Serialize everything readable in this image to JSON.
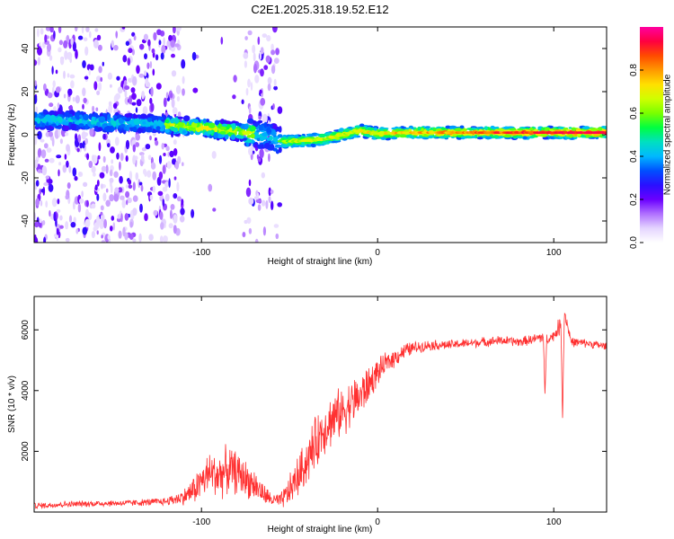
{
  "figure_title": "C2E1.2025.318.19.52.E12",
  "chart_data": [
    {
      "type": "heatmap",
      "title": "C2E1.2025.318.19.52.E12",
      "xlabel": "Height of straight line (km)",
      "ylabel": "Frequency (Hz)",
      "xlim": [
        -195,
        130
      ],
      "ylim": [
        -50,
        50
      ],
      "xticks": [
        -100,
        0,
        100
      ],
      "xtick_labels": [
        "-100",
        "0",
        "100"
      ],
      "yticks": [
        -40,
        -20,
        0,
        20,
        40
      ],
      "ytick_labels": [
        "-40",
        "-20",
        "0",
        "20",
        "40"
      ],
      "colorbar": {
        "label": "Normalized spectral amplitude",
        "range": [
          0,
          1
        ],
        "ticks": [
          0.0,
          0.2,
          0.4,
          0.6,
          0.8
        ],
        "tick_labels": [
          "0.0",
          "0.2",
          "0.4",
          "0.6",
          "0.8"
        ],
        "colors": [
          "#ffffff",
          "#e4d4ff",
          "#b070ff",
          "#6a00ff",
          "#2a10ff",
          "#0050ff",
          "#00b8ff",
          "#00e0c0",
          "#00ff40",
          "#7aff00",
          "#d0ff00",
          "#ffe000",
          "#ff9800",
          "#ff4a00",
          "#ff0040",
          "#ff00a0"
        ]
      },
      "ridge_center": [
        {
          "x": -195,
          "y": 7
        },
        {
          "x": -170,
          "y": 6.5
        },
        {
          "x": -150,
          "y": 5.5
        },
        {
          "x": -130,
          "y": 5
        },
        {
          "x": -110,
          "y": 4
        },
        {
          "x": -95,
          "y": 3
        },
        {
          "x": -80,
          "y": 1.5
        },
        {
          "x": -65,
          "y": 0
        },
        {
          "x": -55,
          "y": -3
        },
        {
          "x": -45,
          "y": -3
        },
        {
          "x": -30,
          "y": -2
        },
        {
          "x": -20,
          "y": 0
        },
        {
          "x": -10,
          "y": 2
        },
        {
          "x": 0,
          "y": 0.5
        },
        {
          "x": 20,
          "y": 1
        },
        {
          "x": 50,
          "y": 1
        },
        {
          "x": 80,
          "y": 1
        },
        {
          "x": 100,
          "y": 1
        },
        {
          "x": 130,
          "y": 1
        }
      ],
      "noise_regions": [
        {
          "x_from": -195,
          "x_to": -110,
          "density": 0.9
        },
        {
          "x_from": -110,
          "x_to": -75,
          "density": 0.05
        },
        {
          "x_from": -75,
          "x_to": -55,
          "density": 0.8
        },
        {
          "x_from": -55,
          "x_to": 130,
          "density": 0.0
        }
      ],
      "high_amplitude_segment": {
        "x_from": -55,
        "x_to": 130,
        "max_amplitude": 0.95
      }
    },
    {
      "type": "line",
      "xlabel": "Height of straight line (km)",
      "ylabel": "SNR (10 * v/v)",
      "xlim": [
        -195,
        130
      ],
      "ylim": [
        0,
        7100
      ],
      "xticks": [
        -100,
        0,
        100
      ],
      "xtick_labels": [
        "-100",
        "0",
        "100"
      ],
      "yticks": [
        2000,
        4000,
        6000
      ],
      "ytick_labels": [
        "2000",
        "4000",
        "6000"
      ],
      "line_color": "#ff3030",
      "series": [
        {
          "name": "SNR",
          "x": [
            -195,
            -180,
            -160,
            -140,
            -120,
            -110,
            -105,
            -100,
            -95,
            -90,
            -85,
            -80,
            -75,
            -70,
            -65,
            -60,
            -55,
            -50,
            -45,
            -40,
            -35,
            -30,
            -25,
            -20,
            -15,
            -10,
            -5,
            0,
            5,
            10,
            15,
            20,
            25,
            30,
            40,
            50,
            60,
            70,
            80,
            90,
            94,
            95,
            96,
            100,
            104,
            105,
            106,
            110,
            120,
            130
          ],
          "values": [
            200,
            250,
            280,
            300,
            350,
            500,
            700,
            1000,
            1300,
            1200,
            1400,
            1300,
            1100,
            900,
            600,
            400,
            350,
            700,
            1200,
            1700,
            2300,
            2800,
            3100,
            3300,
            3600,
            3800,
            4200,
            4600,
            4900,
            5100,
            5300,
            5400,
            5450,
            5500,
            5500,
            5550,
            5600,
            5650,
            5600,
            5700,
            5800,
            3900,
            5700,
            5800,
            6200,
            3100,
            6600,
            5600,
            5550,
            5450
          ],
          "noise_amplitude": [
            120,
            120,
            120,
            120,
            150,
            300,
            500,
            700,
            800,
            900,
            900,
            800,
            700,
            600,
            400,
            250,
            300,
            600,
            800,
            900,
            1000,
            1000,
            1000,
            900,
            900,
            900,
            700,
            500,
            400,
            350,
            300,
            250,
            200,
            200,
            180,
            180,
            180,
            180,
            180,
            200,
            300,
            0,
            200,
            200,
            400,
            0,
            300,
            180,
            160,
            160
          ]
        }
      ]
    }
  ]
}
